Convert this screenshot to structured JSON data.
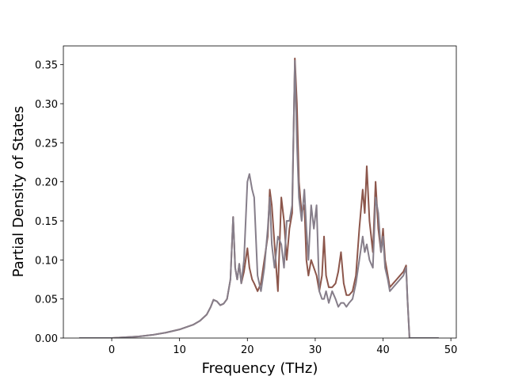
{
  "chart_data": {
    "type": "line",
    "x_label": "Frequency (THz)",
    "y_label": "Partial Density of States",
    "x": [
      -4.8,
      0,
      2,
      4,
      6,
      8,
      10,
      12,
      13,
      14,
      14.6,
      15,
      15.5,
      16,
      16.5,
      17,
      17.5,
      17.9,
      18.2,
      18.5,
      18.8,
      19.1,
      19.5,
      20,
      20.3,
      20.7,
      21,
      21.5,
      22,
      22.5,
      23,
      23.3,
      23.6,
      24,
      24.5,
      25,
      25.4,
      25.8,
      26.2,
      26.6,
      27,
      27.3,
      27.6,
      28,
      28.4,
      28.7,
      29,
      29.4,
      29.8,
      30.2,
      30.6,
      31,
      31.3,
      31.6,
      32,
      32.5,
      33,
      33.4,
      33.8,
      34.2,
      34.6,
      35,
      35.5,
      36,
      36.5,
      37,
      37.3,
      37.6,
      38,
      38.5,
      38.9,
      39.3,
      39.7,
      40,
      40.3,
      40.7,
      41,
      41.5,
      42,
      42.5,
      43,
      43.4,
      43.6,
      43.9,
      48.2
    ],
    "series": [
      {
        "color": "#8c564b",
        "values": [
          0,
          0,
          0.001,
          0.002,
          0.004,
          0.007,
          0.011,
          0.017,
          0.022,
          0.03,
          0.04,
          0.049,
          0.047,
          0.042,
          0.044,
          0.05,
          0.075,
          0.155,
          0.09,
          0.075,
          0.095,
          0.07,
          0.085,
          0.115,
          0.09,
          0.075,
          0.07,
          0.06,
          0.07,
          0.1,
          0.13,
          0.19,
          0.17,
          0.12,
          0.06,
          0.18,
          0.15,
          0.1,
          0.14,
          0.16,
          0.358,
          0.3,
          0.2,
          0.16,
          0.17,
          0.1,
          0.08,
          0.1,
          0.09,
          0.08,
          0.06,
          0.08,
          0.13,
          0.08,
          0.065,
          0.065,
          0.07,
          0.085,
          0.11,
          0.07,
          0.055,
          0.055,
          0.06,
          0.08,
          0.14,
          0.19,
          0.16,
          0.22,
          0.15,
          0.11,
          0.2,
          0.14,
          0.11,
          0.14,
          0.1,
          0.08,
          0.065,
          0.07,
          0.075,
          0.08,
          0.085,
          0.093,
          0.05,
          0,
          0
        ]
      },
      {
        "color": "#867e8a",
        "values": [
          0,
          0,
          0.001,
          0.002,
          0.004,
          0.007,
          0.011,
          0.017,
          0.022,
          0.03,
          0.04,
          0.049,
          0.047,
          0.042,
          0.044,
          0.05,
          0.075,
          0.155,
          0.09,
          0.075,
          0.095,
          0.07,
          0.1,
          0.2,
          0.21,
          0.19,
          0.18,
          0.08,
          0.06,
          0.09,
          0.14,
          0.18,
          0.12,
          0.09,
          0.13,
          0.12,
          0.09,
          0.15,
          0.15,
          0.17,
          0.355,
          0.25,
          0.18,
          0.15,
          0.19,
          0.14,
          0.1,
          0.17,
          0.14,
          0.17,
          0.06,
          0.05,
          0.05,
          0.06,
          0.045,
          0.06,
          0.05,
          0.04,
          0.045,
          0.045,
          0.04,
          0.045,
          0.05,
          0.07,
          0.1,
          0.13,
          0.11,
          0.12,
          0.1,
          0.09,
          0.18,
          0.16,
          0.11,
          0.13,
          0.09,
          0.075,
          0.06,
          0.065,
          0.07,
          0.075,
          0.08,
          0.09,
          0.05,
          0,
          0
        ]
      }
    ],
    "xlim": [
      -7.13,
      50.8
    ],
    "ylim": [
      0,
      0.374
    ],
    "xticks": [
      0,
      10,
      20,
      30,
      40,
      50
    ],
    "yticks": [
      {
        "value": 0,
        "label": "0.00"
      },
      {
        "value": 0.05,
        "label": "0.05"
      },
      {
        "value": 0.1,
        "label": "0.10"
      },
      {
        "value": 0.15,
        "label": "0.15"
      },
      {
        "value": 0.2,
        "label": "0.20"
      },
      {
        "value": 0.25,
        "label": "0.25"
      },
      {
        "value": 0.3,
        "label": "0.30"
      },
      {
        "value": 0.35,
        "label": "0.35"
      }
    ]
  }
}
